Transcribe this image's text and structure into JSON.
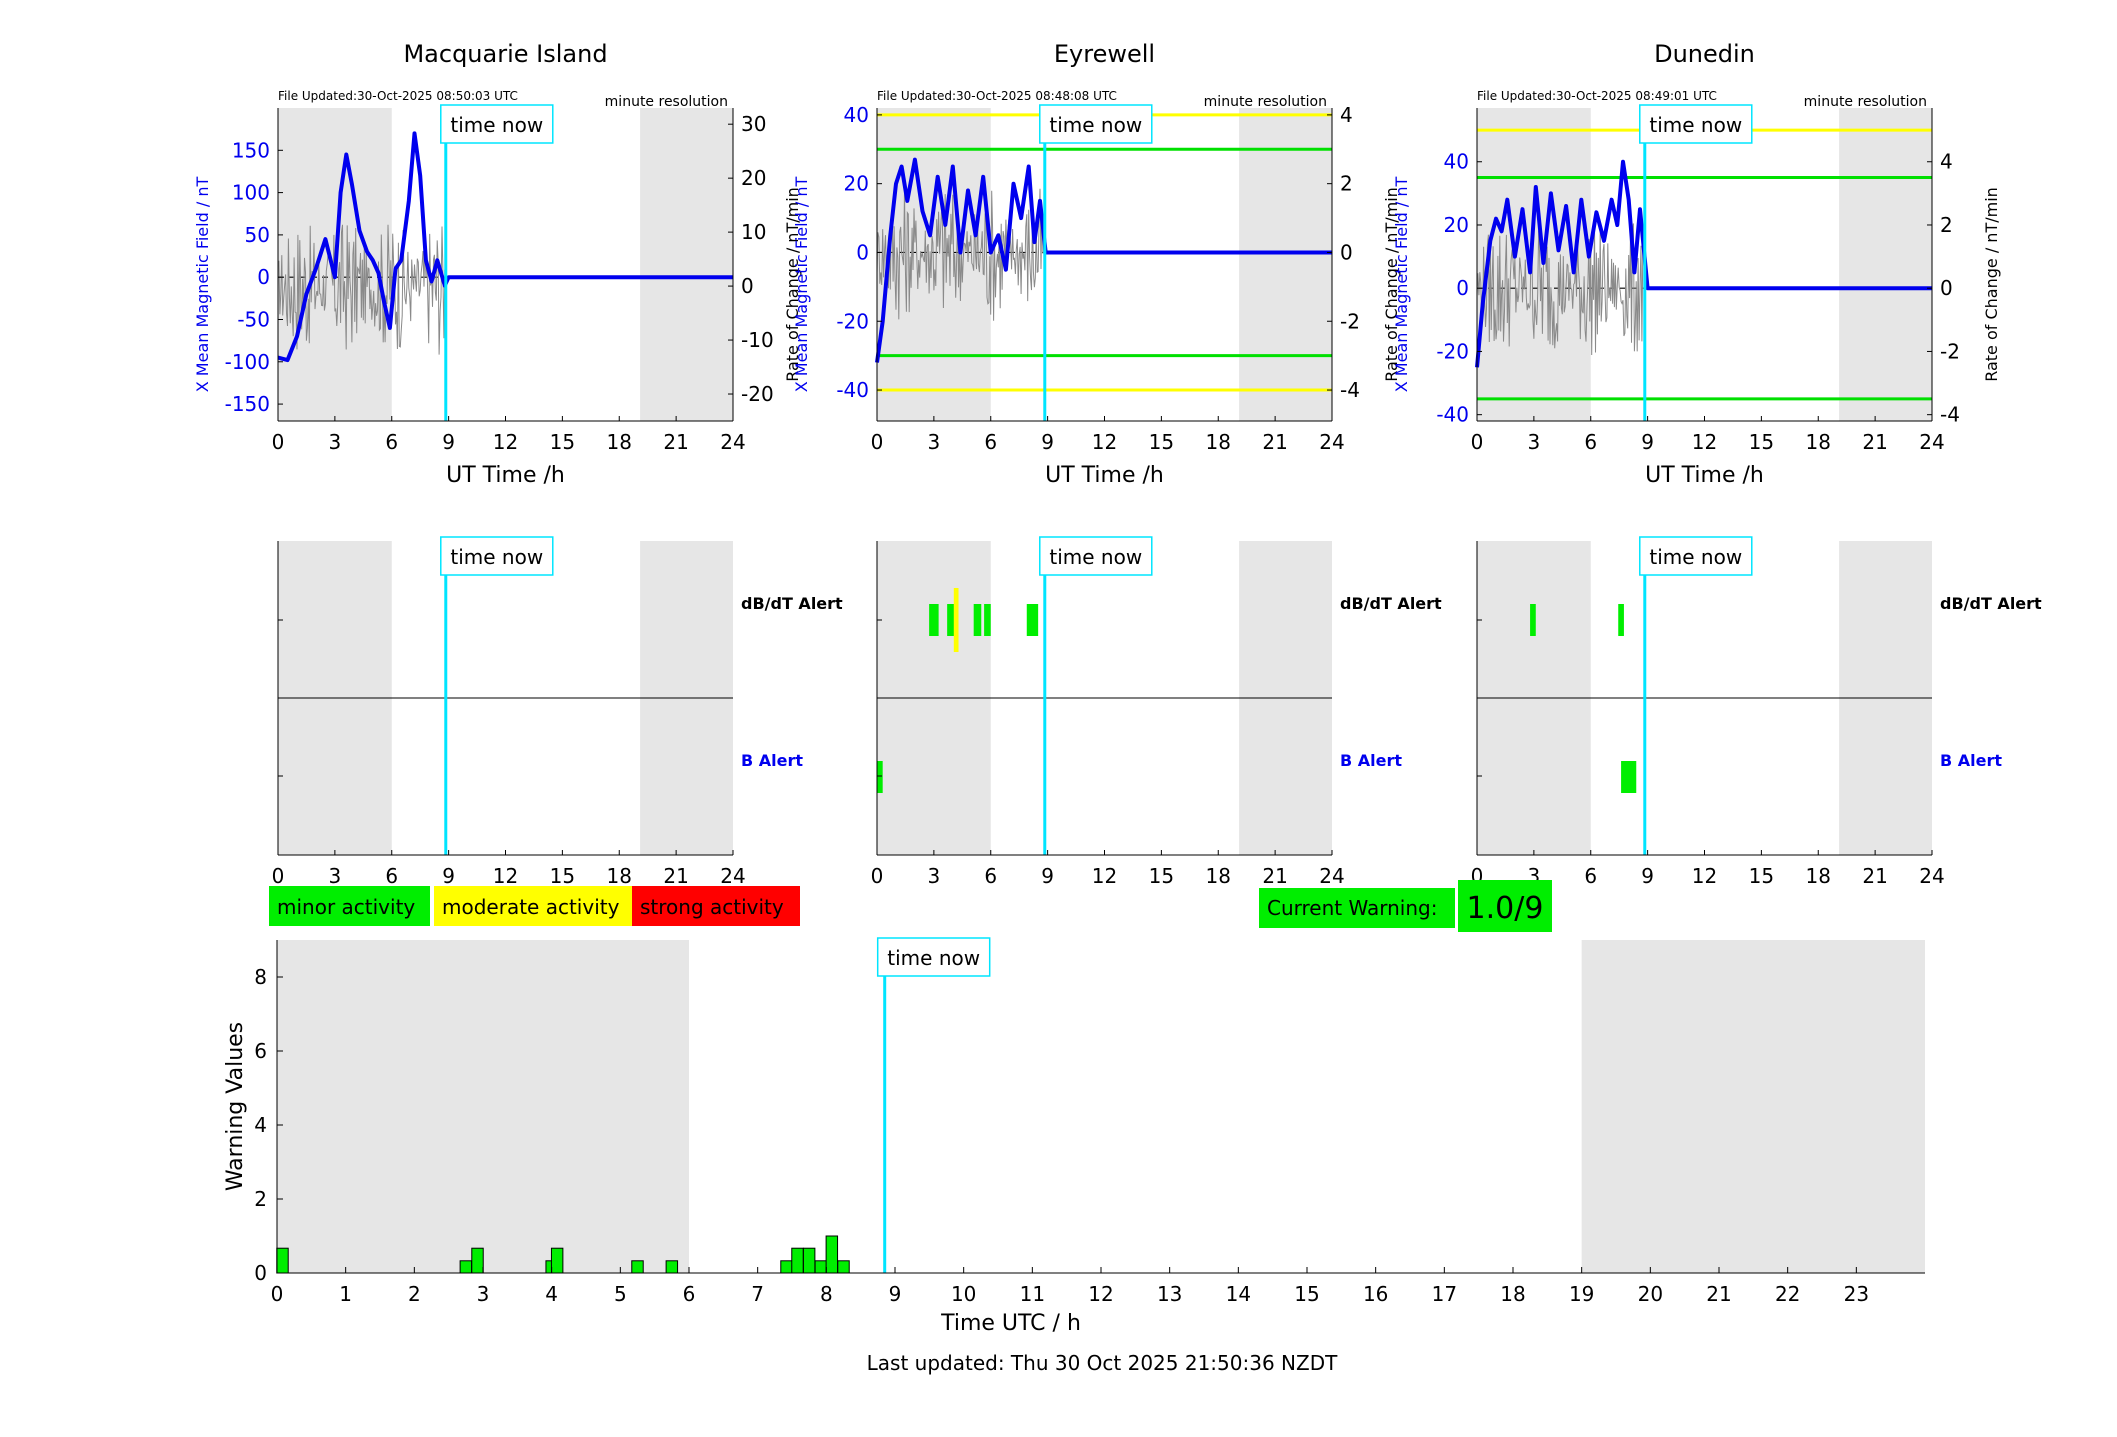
{
  "stations": [
    {
      "name": "Macquarie Island",
      "file_updated": "File Updated:30-Oct-2025 08:50:03 UTC",
      "resolution": "minute resolution",
      "left_axis": {
        "label": "X Mean Magnetic Field / nT",
        "ylim": [
          -170,
          200
        ],
        "ticks": [
          -150,
          -100,
          -50,
          0,
          50,
          100,
          150
        ]
      },
      "right_axis": {
        "label": "Rate of Change / nT/min",
        "ylim": [
          -25,
          33
        ],
        "ticks": [
          -20,
          -10,
          0,
          10,
          20,
          30
        ]
      },
      "thresholds": [],
      "field_x": [
        0,
        0.5,
        1,
        1.5,
        2,
        2.5,
        3,
        3.3,
        3.6,
        3.9,
        4.3,
        4.7,
        5,
        5.3,
        5.6,
        5.9,
        6.2,
        6.5,
        6.9,
        7.2,
        7.5,
        7.8,
        8.1,
        8.4,
        8.8,
        9,
        24
      ],
      "field_y": [
        -95,
        -98,
        -70,
        -20,
        10,
        45,
        0,
        100,
        145,
        110,
        55,
        30,
        20,
        5,
        -30,
        -60,
        10,
        20,
        90,
        170,
        120,
        20,
        -5,
        20,
        -10,
        0,
        0
      ],
      "x_label": "UT Time /h",
      "alert_labels": [
        "dB/dT Alert",
        "B Alert"
      ],
      "dbdt_alerts": [],
      "b_alerts": []
    },
    {
      "name": "Eyrewell",
      "file_updated": "File Updated:30-Oct-2025 08:48:08 UTC",
      "resolution": "minute resolution",
      "left_axis": {
        "label": "X Mean Magnetic Field / nT",
        "ylim": [
          -49,
          42
        ],
        "ticks": [
          -40,
          -20,
          0,
          20,
          40
        ]
      },
      "right_axis": {
        "label": "Rate of Change / nT/min",
        "ylim": [
          -4.9,
          4.2
        ],
        "ticks": [
          -4,
          -2,
          0,
          2,
          4
        ]
      },
      "thresholds": [
        {
          "axis": "right",
          "value": 4,
          "color": "#ffff00"
        },
        {
          "axis": "right",
          "value": 3,
          "color": "#00e000"
        },
        {
          "axis": "right",
          "value": -3,
          "color": "#00e000"
        },
        {
          "axis": "right",
          "value": -4,
          "color": "#ffff00"
        }
      ],
      "field_x": [
        0,
        0.3,
        0.7,
        1,
        1.3,
        1.6,
        2,
        2.4,
        2.8,
        3.2,
        3.6,
        4,
        4.4,
        4.8,
        5.2,
        5.6,
        6,
        6.4,
        6.8,
        7.2,
        7.6,
        8,
        8.3,
        8.6,
        8.9,
        24
      ],
      "field_y": [
        -32,
        -20,
        5,
        20,
        25,
        15,
        27,
        12,
        5,
        22,
        8,
        25,
        0,
        18,
        5,
        22,
        0,
        5,
        -5,
        20,
        10,
        25,
        3,
        15,
        0,
        0
      ],
      "x_label": "UT Time /h",
      "alert_labels": [
        "dB/dT Alert",
        "B Alert"
      ],
      "dbdt_alerts": [
        {
          "start": 2.75,
          "end": 3.25,
          "level": "minor"
        },
        {
          "start": 3.7,
          "end": 4.2,
          "level": "minor"
        },
        {
          "start": 4.05,
          "end": 4.3,
          "level": "moderate"
        },
        {
          "start": 5.1,
          "end": 5.5,
          "level": "minor"
        },
        {
          "start": 5.65,
          "end": 6.0,
          "level": "minor"
        },
        {
          "start": 7.9,
          "end": 8.5,
          "level": "minor"
        }
      ],
      "b_alerts": [
        {
          "start": 0.0,
          "end": 0.3,
          "level": "minor"
        }
      ]
    },
    {
      "name": "Dunedin",
      "file_updated": "File Updated:30-Oct-2025 08:49:01 UTC",
      "resolution": "minute resolution",
      "left_axis": {
        "label": "X Mean Magnetic Field / nT",
        "ylim": [
          -42,
          57
        ],
        "ticks": [
          -40,
          -20,
          0,
          20,
          40
        ]
      },
      "right_axis": {
        "label": "Rate of Change / nT/min",
        "ylim": [
          -4.2,
          5.7
        ],
        "ticks": [
          -4,
          -2,
          0,
          2,
          4
        ]
      },
      "thresholds": [
        {
          "axis": "right",
          "value": 5,
          "color": "#ffff00"
        },
        {
          "axis": "right",
          "value": 3.5,
          "color": "#00e000"
        },
        {
          "axis": "right",
          "value": -3.5,
          "color": "#00e000"
        }
      ],
      "field_x": [
        0,
        0.3,
        0.7,
        1,
        1.3,
        1.6,
        2,
        2.4,
        2.8,
        3.1,
        3.5,
        3.9,
        4.3,
        4.7,
        5.1,
        5.5,
        5.9,
        6.3,
        6.7,
        7.1,
        7.4,
        7.7,
        8,
        8.3,
        8.6,
        9,
        24
      ],
      "field_y": [
        -25,
        -5,
        15,
        22,
        18,
        28,
        10,
        25,
        5,
        32,
        8,
        30,
        12,
        26,
        5,
        28,
        10,
        24,
        15,
        28,
        20,
        40,
        28,
        5,
        25,
        0,
        0
      ],
      "x_label": "UT Time /h",
      "alert_labels": [
        "dB/dT Alert",
        "B Alert"
      ],
      "dbdt_alerts": [
        {
          "start": 2.8,
          "end": 3.1,
          "level": "minor"
        },
        {
          "start": 7.45,
          "end": 7.75,
          "level": "minor"
        }
      ],
      "b_alerts": [
        {
          "start": 7.6,
          "end": 8.4,
          "level": "minor"
        }
      ]
    }
  ],
  "time_now_label": "time now",
  "time_now_hour": 8.85,
  "night_shading": [
    [
      0,
      6
    ],
    [
      19.1,
      24
    ]
  ],
  "legend": {
    "minor": {
      "label": "minor activity",
      "color": "#00ee00"
    },
    "moderate": {
      "label": "moderate activity",
      "color": "#ffff00"
    },
    "strong": {
      "label": "strong activity",
      "color": "#ff0000"
    }
  },
  "current_warning": {
    "label": "Current Warning:",
    "value": "1.0/9",
    "color": "#00ee00"
  },
  "chart_data": {
    "type": "bar",
    "ylabel": "Warning Values",
    "xlabel": "Time UTC / h",
    "ylim": [
      0,
      9
    ],
    "yticks": [
      0,
      2,
      4,
      6,
      8
    ],
    "xlim": [
      0,
      24
    ],
    "xticks": [
      0,
      1,
      2,
      3,
      4,
      5,
      6,
      7,
      8,
      9,
      10,
      11,
      12,
      13,
      14,
      15,
      16,
      17,
      18,
      19,
      20,
      21,
      22,
      23
    ],
    "bar_width_hours": 0.1667,
    "x": [
      0.08,
      2.75,
      2.92,
      4.0,
      4.08,
      5.25,
      5.75,
      7.42,
      7.58,
      7.75,
      7.92,
      8.08,
      8.25
    ],
    "values": [
      0.67,
      0.33,
      0.67,
      0.33,
      0.67,
      0.33,
      0.33,
      0.33,
      0.67,
      0.67,
      0.33,
      1.0,
      0.33
    ],
    "shading": [
      [
        0,
        6
      ],
      [
        19,
        24
      ]
    ]
  },
  "footer": "Last updated: Thu 30 Oct 2025 21:50:36 NZDT"
}
